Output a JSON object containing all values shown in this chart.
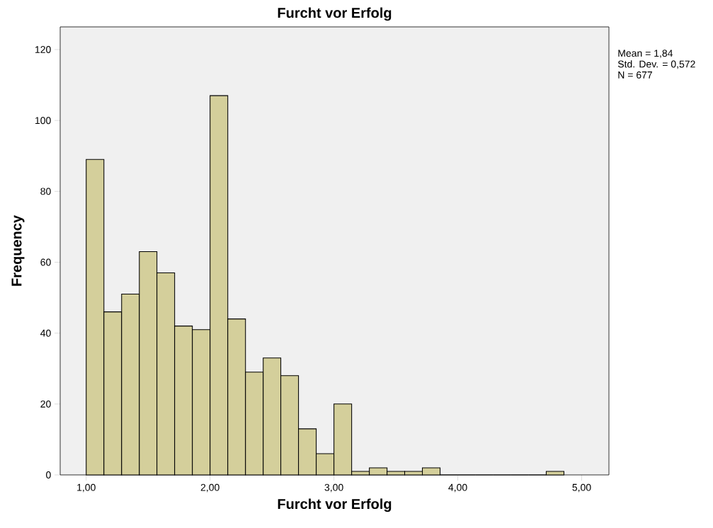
{
  "chart_data": {
    "type": "histogram",
    "title": "Furcht vor Erfolg",
    "xlabel": "Furcht vor Erfolg",
    "ylabel": "Frequency",
    "bins": [
      1,
      1.143,
      1.286,
      1.429,
      1.571,
      1.714,
      1.857,
      2,
      2.143,
      2.286,
      2.429,
      2.571,
      2.714,
      2.857,
      3,
      3.143,
      3.286,
      3.429,
      3.571,
      3.714,
      3.857,
      4,
      4.143,
      4.286,
      4.429,
      4.571,
      4.714,
      4.857
    ],
    "values": [
      89,
      46,
      51,
      63,
      57,
      42,
      41,
      107,
      44,
      29,
      33,
      28,
      13,
      6,
      20,
      1,
      2,
      1,
      1,
      2,
      0,
      0,
      0,
      0,
      0,
      0,
      1
    ],
    "color": "#d4cf9b",
    "xlim": [
      0.79,
      5.22
    ],
    "ylim": [
      0,
      126.4
    ],
    "xticks": [
      {
        "value": 1,
        "label": "1,00"
      },
      {
        "value": 2,
        "label": "2,00"
      },
      {
        "value": 3,
        "label": "3,00"
      },
      {
        "value": 4,
        "label": "4,00"
      },
      {
        "value": 5,
        "label": "5,00"
      }
    ],
    "yticks": [
      0,
      20,
      40,
      60,
      80,
      100,
      120
    ],
    "annotations": [
      "Mean = 1,84",
      "Std. Dev. = 0,572",
      "N = 677"
    ]
  }
}
